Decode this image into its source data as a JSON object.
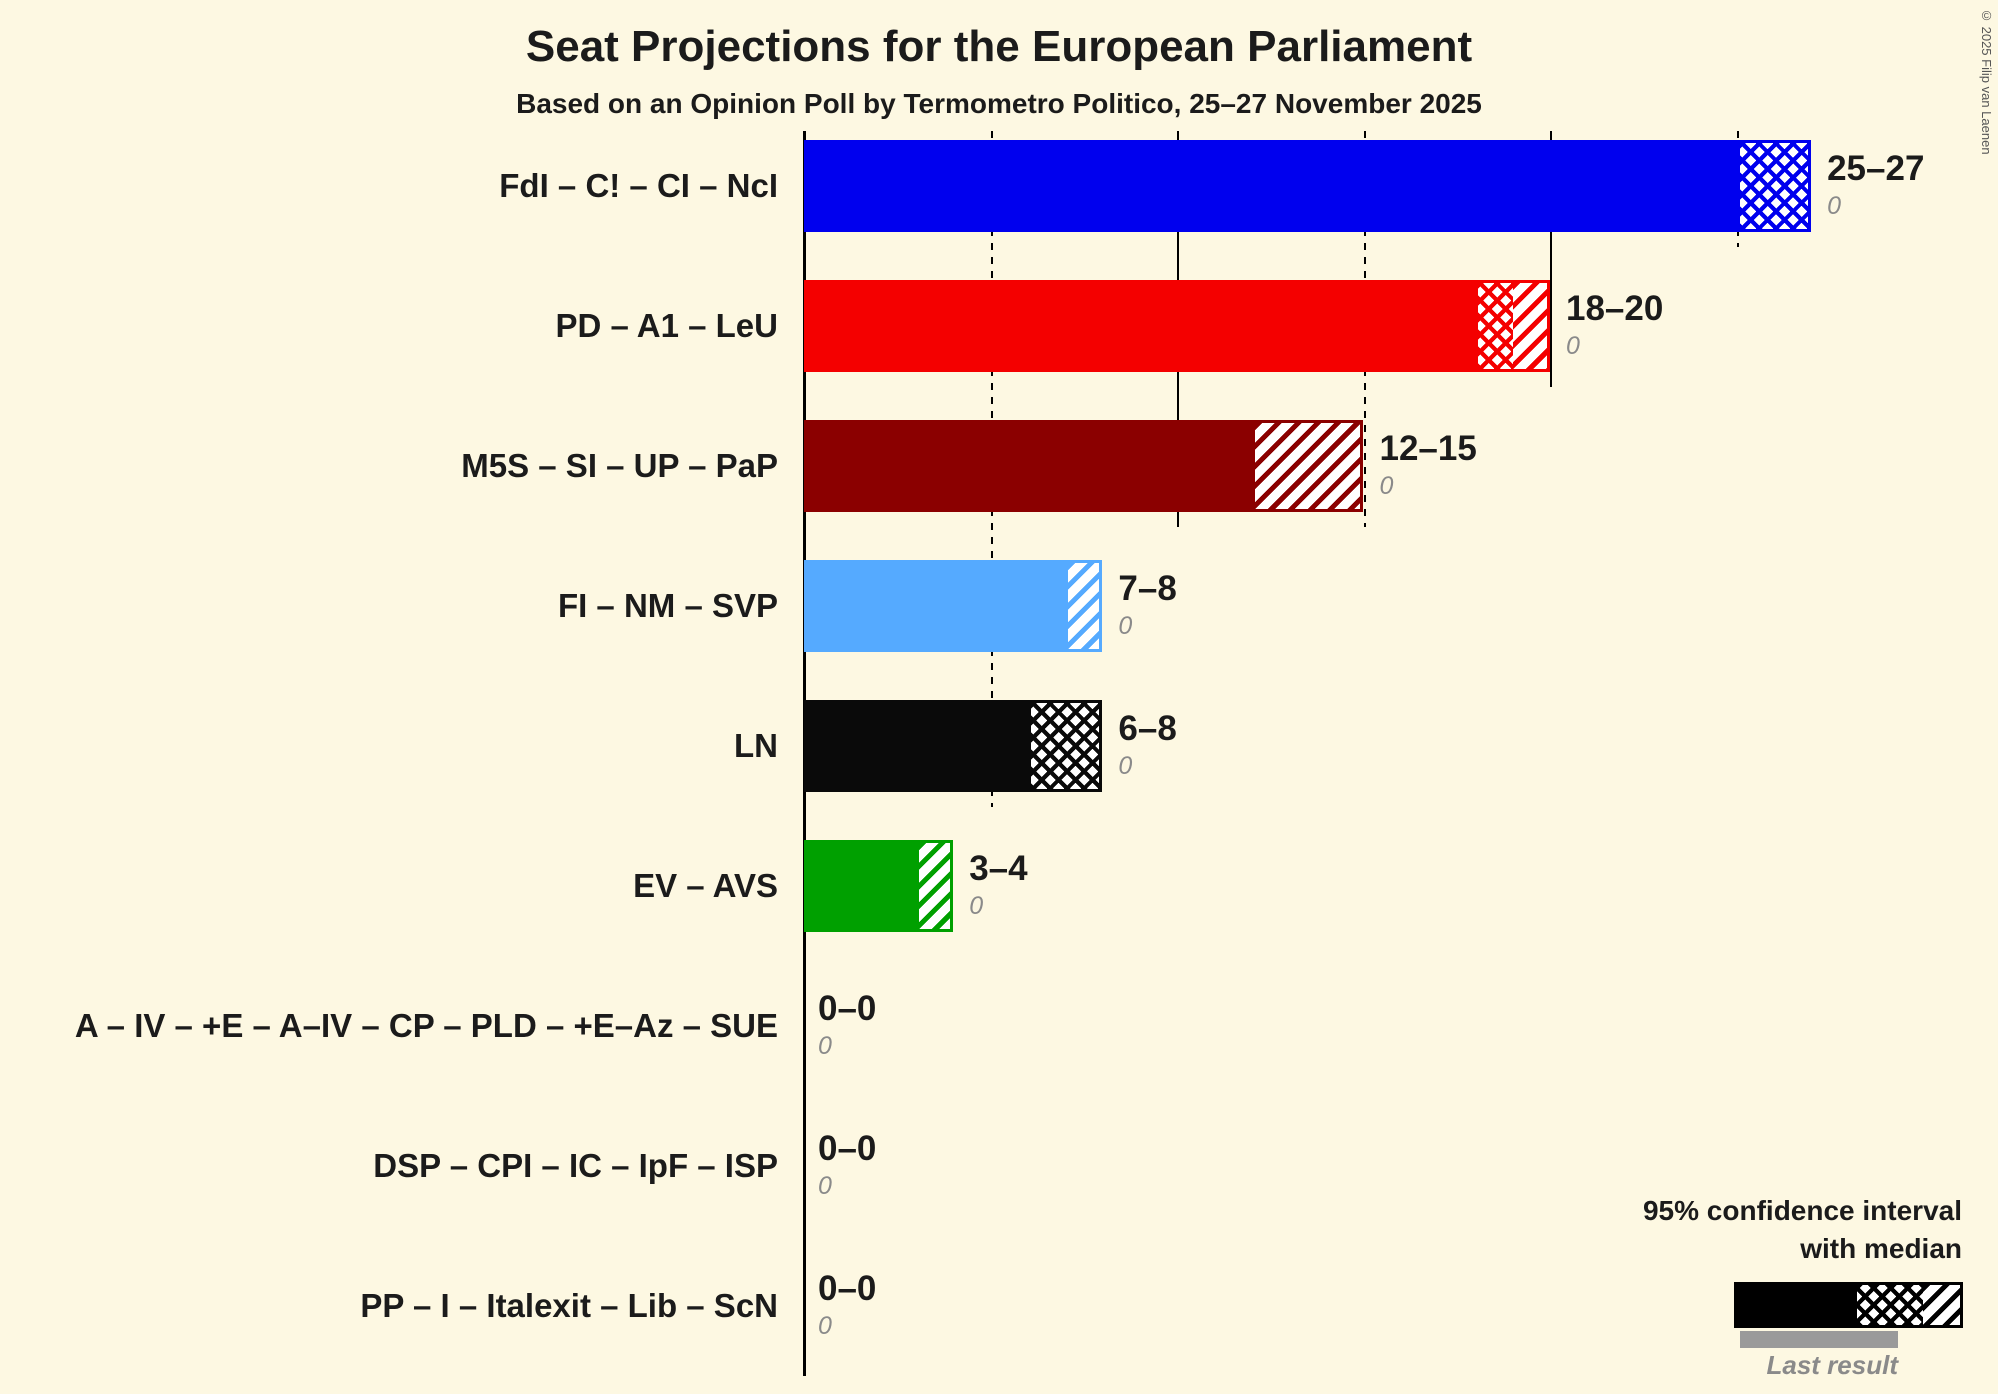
{
  "title": "Seat Projections for the European Parliament",
  "subtitle": "Based on an Opinion Poll by Termometro Politico, 25–27 November 2025",
  "copyright": "© 2025 Filip van Laenen",
  "legend": {
    "line1": "95% confidence interval",
    "line2": "with median",
    "last_result_label": "Last result"
  },
  "chart_data": {
    "type": "bar",
    "orientation": "horizontal",
    "unit": "seats",
    "x_axis": {
      "min": 0,
      "max": 27,
      "solid_gridlines": [
        10,
        20
      ],
      "dotted_gridlines": [
        5,
        15,
        25
      ]
    },
    "bars": [
      {
        "label": "FdI – C! – CI – NcI",
        "low": 25,
        "median": 27,
        "high": 27,
        "range_label": "25–27",
        "last_result": "0",
        "color": "#0000ee"
      },
      {
        "label": "PD – A1 – LeU",
        "low": 18,
        "median": 19,
        "high": 20,
        "range_label": "18–20",
        "last_result": "0",
        "color": "#f40000"
      },
      {
        "label": "M5S – SI – UP – PaP",
        "low": 12,
        "median": 12,
        "high": 15,
        "range_label": "12–15",
        "last_result": "0",
        "color": "#8b0000"
      },
      {
        "label": "FI – NM – SVP",
        "low": 7,
        "median": 7,
        "high": 8,
        "range_label": "7–8",
        "last_result": "0",
        "color": "#55aaff"
      },
      {
        "label": "LN",
        "low": 6,
        "median": 8,
        "high": 8,
        "range_label": "6–8",
        "last_result": "0",
        "color": "#0a0a0a"
      },
      {
        "label": "EV – AVS",
        "low": 3,
        "median": 3,
        "high": 4,
        "range_label": "3–4",
        "last_result": "0",
        "color": "#00a000"
      },
      {
        "label": "A – IV – +E – A–IV – CP – PLD – +E–Az – SUE",
        "low": 0,
        "median": 0,
        "high": 0,
        "range_label": "0–0",
        "last_result": "0",
        "color": "#888888"
      },
      {
        "label": "DSP – CPI – IC – IpF – ISP",
        "low": 0,
        "median": 0,
        "high": 0,
        "range_label": "0–0",
        "last_result": "0",
        "color": "#888888"
      },
      {
        "label": "PP – I – Italexit – Lib – ScN",
        "low": 0,
        "median": 0,
        "high": 0,
        "range_label": "0–0",
        "last_result": "0",
        "color": "#888888"
      }
    ]
  }
}
